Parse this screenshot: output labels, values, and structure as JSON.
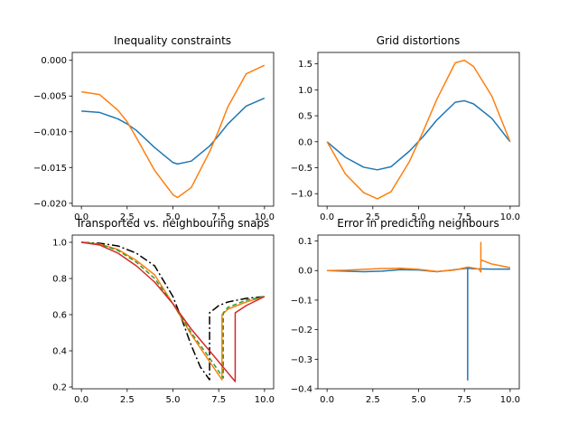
{
  "colors": {
    "c0": "#1f77b4",
    "c1": "#ff7f0e",
    "c2": "#2ca02c",
    "c3": "#d62728",
    "black": "#000000"
  },
  "chart_data": [
    {
      "type": "line",
      "title": "Inequality constraints",
      "xlim": [
        -0.5,
        10.5
      ],
      "ylim": [
        -0.0204,
        0.0011
      ],
      "xticks": [
        0,
        2.5,
        5,
        7.5,
        10
      ],
      "xtick_labels": [
        "0.0",
        "2.5",
        "5.0",
        "7.5",
        "10.0"
      ],
      "yticks": [
        -0.02,
        -0.015,
        -0.01,
        -0.005,
        0
      ],
      "ytick_labels": [
        "−0.020",
        "−0.015",
        "−0.010",
        "−0.005",
        "0.000"
      ],
      "series": [
        {
          "color": "#1f77b4",
          "x": [
            0,
            1,
            2,
            2.5,
            3,
            4,
            5,
            5.25,
            6,
            7,
            7.5,
            8,
            9,
            10
          ],
          "y": [
            -0.0071,
            -0.0073,
            -0.0082,
            -0.0089,
            -0.0098,
            -0.0122,
            -0.0143,
            -0.0145,
            -0.0141,
            -0.012,
            -0.0105,
            -0.0089,
            -0.0064,
            -0.0053
          ]
        },
        {
          "color": "#ff7f0e",
          "x": [
            0,
            1,
            2,
            2.5,
            3,
            4,
            5,
            5.25,
            6,
            7,
            7.5,
            8,
            9,
            10
          ],
          "y": [
            -0.0044,
            -0.0048,
            -0.007,
            -0.0086,
            -0.0108,
            -0.0154,
            -0.0188,
            -0.0192,
            -0.0178,
            -0.0128,
            -0.0098,
            -0.0065,
            -0.0019,
            -0.0007
          ]
        }
      ]
    },
    {
      "type": "line",
      "title": "Grid distortions",
      "xlim": [
        -0.5,
        10.5
      ],
      "ylim": [
        -1.24,
        1.72
      ],
      "xticks": [
        0,
        2.5,
        5,
        7.5,
        10
      ],
      "xtick_labels": [
        "0.0",
        "2.5",
        "5.0",
        "7.5",
        "10.0"
      ],
      "yticks": [
        -1.0,
        -0.5,
        0.0,
        0.5,
        1.0,
        1.5
      ],
      "ytick_labels": [
        "−1.0",
        "−0.5",
        "0.0",
        "0.5",
        "1.0",
        "1.5"
      ],
      "series": [
        {
          "color": "#1f77b4",
          "x": [
            0,
            1,
            2,
            2.75,
            3.5,
            4.5,
            5.25,
            6,
            7,
            7.5,
            8,
            9,
            10
          ],
          "y": [
            0,
            -0.3,
            -0.49,
            -0.54,
            -0.48,
            -0.18,
            0.1,
            0.42,
            0.76,
            0.79,
            0.73,
            0.45,
            0
          ]
        },
        {
          "color": "#ff7f0e",
          "x": [
            0,
            1,
            2,
            2.75,
            3.5,
            4.5,
            5.25,
            6,
            7,
            7.5,
            8,
            9,
            10
          ],
          "y": [
            0,
            -0.62,
            -0.98,
            -1.1,
            -0.96,
            -0.38,
            0.2,
            0.82,
            1.52,
            1.57,
            1.45,
            0.88,
            0
          ]
        }
      ]
    },
    {
      "type": "line",
      "title": "Transported vs. neighbouring snaps",
      "xlim": [
        -0.5,
        10.5
      ],
      "ylim": [
        0.19,
        1.04
      ],
      "xticks": [
        0,
        2.5,
        5,
        7.5,
        10
      ],
      "xtick_labels": [
        "0.0",
        "2.5",
        "5.0",
        "7.5",
        "10.0"
      ],
      "yticks": [
        0.2,
        0.4,
        0.6,
        0.8,
        1.0
      ],
      "ytick_labels": [
        "0.2",
        "0.4",
        "0.6",
        "0.8",
        "1.0"
      ],
      "series": [
        {
          "color": "#000000",
          "dash": "dashdot",
          "x": [
            0,
            1,
            2,
            3,
            4,
            5,
            5.5,
            6,
            6.5,
            7,
            7.0,
            7.5,
            8,
            9,
            10
          ],
          "y": [
            1.0,
            0.995,
            0.98,
            0.94,
            0.87,
            0.7,
            0.57,
            0.43,
            0.31,
            0.24,
            0.61,
            0.65,
            0.67,
            0.69,
            0.7
          ]
        },
        {
          "color": "#ff7f0e",
          "x": [
            0,
            1,
            2,
            3,
            4,
            5,
            6,
            7,
            7.68,
            7.68,
            8,
            9,
            10
          ],
          "y": [
            1.0,
            0.99,
            0.96,
            0.9,
            0.82,
            0.66,
            0.49,
            0.34,
            0.24,
            0.6,
            0.63,
            0.67,
            0.7
          ]
        },
        {
          "color": "#2ca02c",
          "dash": "dashed",
          "x": [
            0,
            1,
            2,
            3,
            4,
            5,
            6,
            7,
            7.75,
            7.75,
            8,
            9,
            10
          ],
          "y": [
            1.0,
            0.99,
            0.955,
            0.89,
            0.8,
            0.66,
            0.5,
            0.36,
            0.25,
            0.61,
            0.64,
            0.68,
            0.7
          ]
        },
        {
          "color": "#d62728",
          "x": [
            0,
            1,
            2,
            3,
            4,
            5,
            6,
            7,
            8.4,
            8.4,
            9,
            10
          ],
          "y": [
            1.0,
            0.985,
            0.94,
            0.87,
            0.78,
            0.66,
            0.52,
            0.4,
            0.23,
            0.61,
            0.65,
            0.7
          ]
        }
      ]
    },
    {
      "type": "line",
      "title": "Error in predicting neighbours",
      "xlim": [
        -0.5,
        10.5
      ],
      "ylim": [
        -0.4,
        0.12
      ],
      "xticks": [
        0,
        2.5,
        5,
        7.5,
        10
      ],
      "xtick_labels": [
        "0.0",
        "2.5",
        "5.0",
        "7.5",
        "10.0"
      ],
      "yticks": [
        -0.4,
        -0.3,
        -0.2,
        -0.1,
        0.0,
        0.1
      ],
      "ytick_labels": [
        "−0.4",
        "−0.3",
        "−0.2",
        "−0.1",
        "0.0",
        "0.1"
      ],
      "series": [
        {
          "color": "#1f77b4",
          "x": [
            0,
            1,
            2,
            3,
            4,
            5,
            6,
            7,
            7.68,
            7.68,
            7.68,
            8,
            9,
            10
          ],
          "y": [
            0,
            -0.002,
            -0.004,
            -0.002,
            0.003,
            0.002,
            -0.004,
            0.003,
            0.008,
            -0.37,
            0.008,
            0.006,
            0.005,
            0.005
          ]
        },
        {
          "color": "#ff7f0e",
          "x": [
            0,
            1,
            2,
            3,
            4,
            5,
            6,
            7,
            7.7,
            8.3,
            8.4,
            8.4,
            8.4,
            8.45,
            9,
            10
          ],
          "y": [
            0,
            0.001,
            0.004,
            0.007,
            0.008,
            0.004,
            -0.003,
            0.002,
            0.012,
            0.005,
            -0.005,
            0.095,
            0.03,
            0.035,
            0.022,
            0.01
          ]
        }
      ]
    }
  ]
}
